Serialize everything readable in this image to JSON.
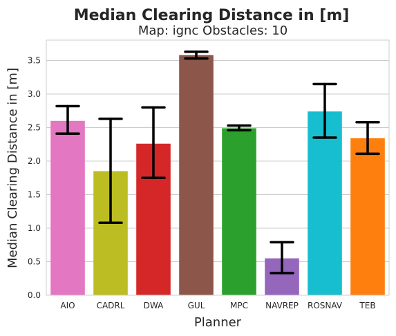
{
  "chart_data": {
    "type": "bar",
    "title": "Median Clearing Distance in [m]",
    "subtitle": "Map: ignc Obstacles: 10",
    "xlabel": "Planner",
    "ylabel": "Median Clearing Distance in [m]",
    "categories": [
      "AIO",
      "CADRL",
      "DWA",
      "GUL",
      "MPC",
      "NAVREP",
      "ROSNAV",
      "TEB"
    ],
    "values": [
      2.6,
      1.85,
      2.26,
      3.58,
      2.49,
      0.55,
      2.74,
      2.34
    ],
    "error_low": [
      2.41,
      1.08,
      1.75,
      3.53,
      2.46,
      0.33,
      2.35,
      2.11
    ],
    "error_high": [
      2.82,
      2.63,
      2.8,
      3.63,
      2.53,
      0.79,
      3.15,
      2.58
    ],
    "colors": [
      "#e377c2",
      "#bcbd22",
      "#d62728",
      "#8c564b",
      "#2ca02c",
      "#9467bd",
      "#17becf",
      "#ff7f0e"
    ],
    "ylim": [
      0,
      3.8
    ],
    "yticks": [
      "0.0",
      "0.5",
      "1.0",
      "1.5",
      "2.0",
      "2.5",
      "3.0",
      "3.5"
    ],
    "grid": "horizontal",
    "legend": "none"
  }
}
